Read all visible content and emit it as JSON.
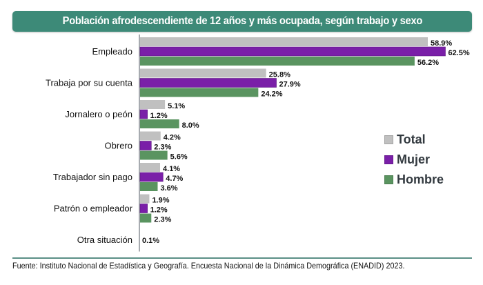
{
  "chart_data": {
    "type": "bar",
    "orientation": "horizontal",
    "title": "Población afrodescendiente de 12 años y más ocupada, según trabajo y sexo",
    "categories": [
      "Empleado",
      "Trabaja por su cuenta",
      "Jornalero o peón",
      "Obrero",
      "Trabajador sin pago",
      "Patrón o empleador",
      "Otra situación"
    ],
    "series": [
      {
        "name": "Total",
        "color": "#c0c0c0",
        "values": [
          58.9,
          25.8,
          5.1,
          4.2,
          4.1,
          1.9,
          0.1
        ],
        "labels": [
          "58.9%",
          "25.8%",
          "5.1%",
          "4.2%",
          "4.1%",
          "1.9%",
          "0.1%"
        ]
      },
      {
        "name": "Mujer",
        "color": "#7a1fa8",
        "values": [
          62.5,
          27.9,
          1.2,
          2.3,
          4.7,
          1.2,
          null
        ],
        "labels": [
          "62.5%",
          "27.9%",
          "1.2%",
          "2.3%",
          "4.7%",
          "1.2%",
          ""
        ]
      },
      {
        "name": "Hombre",
        "color": "#5a9460",
        "values": [
          56.2,
          24.2,
          8.0,
          5.6,
          3.6,
          2.3,
          null
        ],
        "labels": [
          "56.2%",
          "24.2%",
          "8.0%",
          "5.6%",
          "3.6%",
          "2.3%",
          ""
        ]
      }
    ],
    "xlabel": "",
    "ylabel": "",
    "xlim": [
      0,
      65
    ],
    "grid": false,
    "legend_position": "right",
    "value_suffix": "%"
  },
  "title": "Población afrodescendiente de 12 años y más ocupada, según trabajo y sexo",
  "colors": {
    "title_bg": "#3d8a78",
    "rule": "#5a8f86"
  },
  "footer": "Fuente: Instituto Nacional de Estadística y Geografía. Encuesta Nacional de la Dinámica Demográfica (ENADID) 2023."
}
